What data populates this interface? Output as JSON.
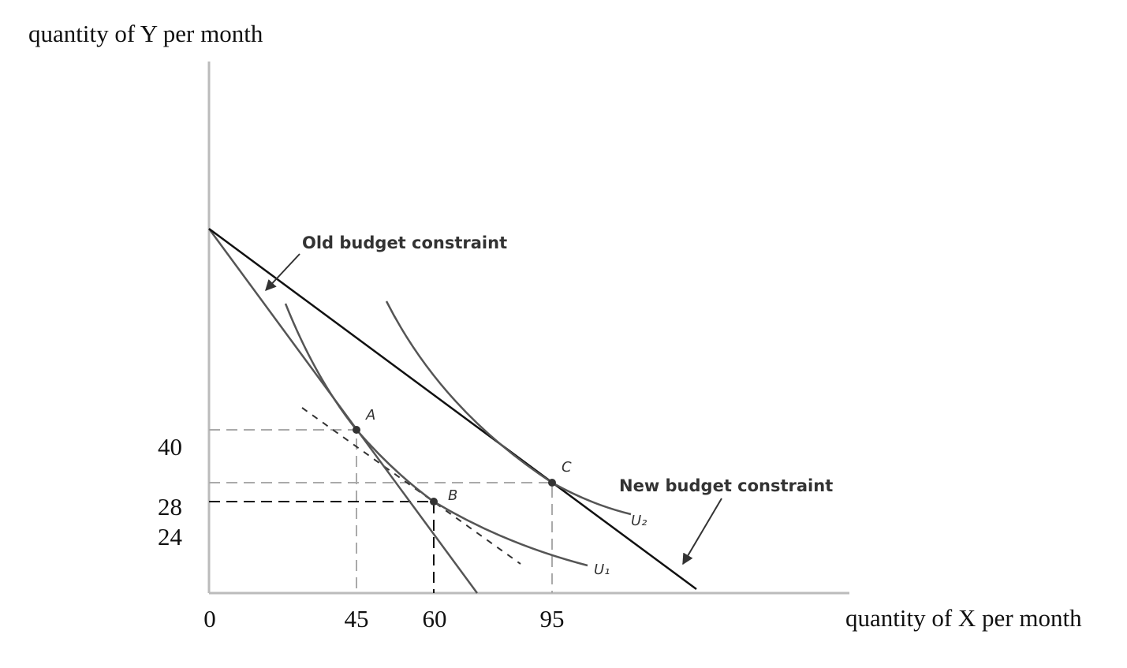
{
  "y_axis_label": "quantity of Y per month",
  "x_axis_label": "quantity of X per month",
  "y_tick_labels": [
    "40",
    "28",
    "24"
  ],
  "x_tick_labels": [
    "0",
    "45",
    "60",
    "95"
  ],
  "annotations": {
    "old_budget": "Old budget constraint",
    "new_budget": "New budget constraint"
  },
  "points": [
    "A",
    "B",
    "C"
  ],
  "curves": [
    "U₁",
    "U₂"
  ]
}
